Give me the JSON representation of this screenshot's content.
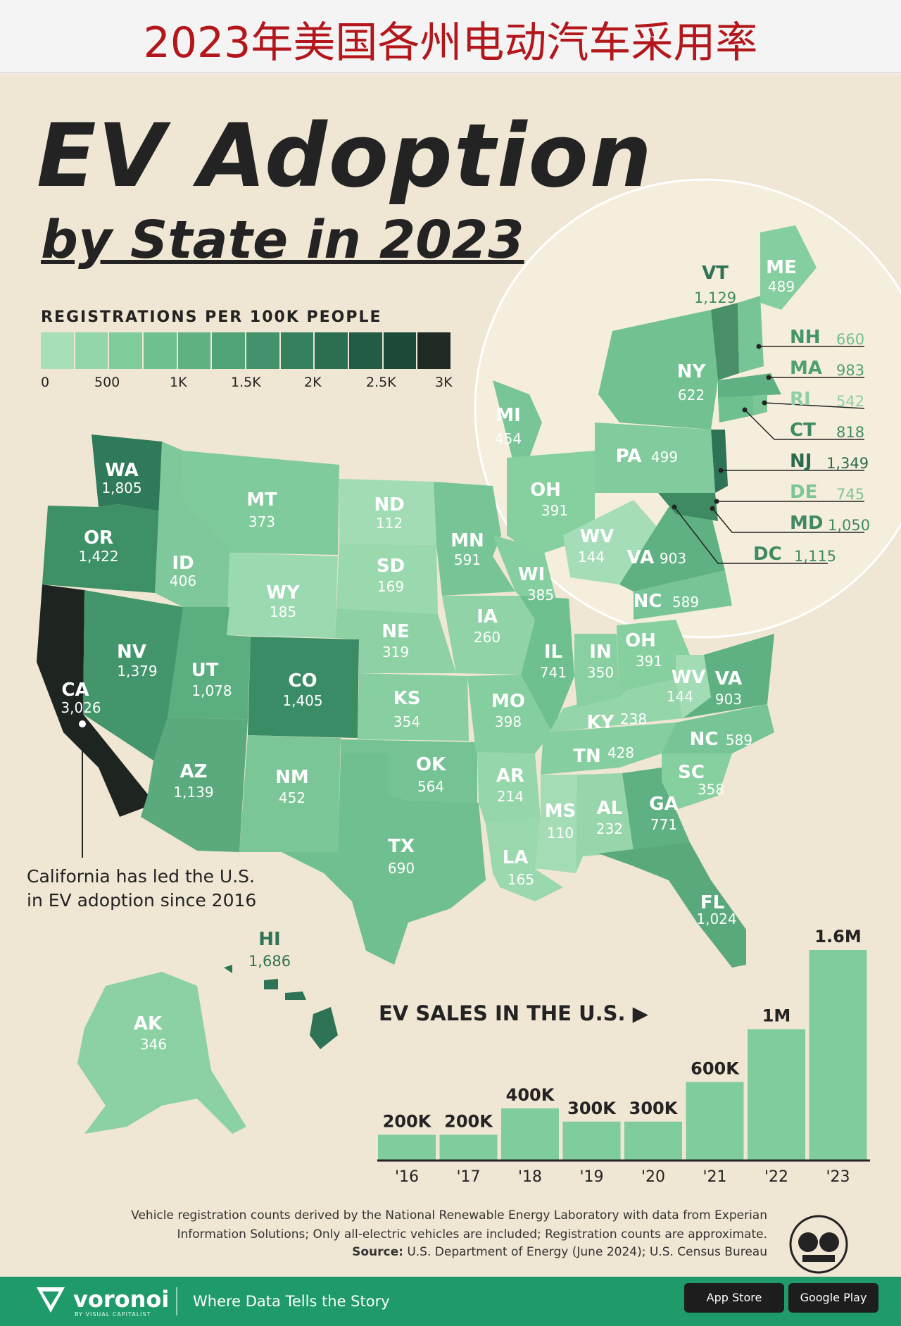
{
  "header": {
    "chinese_title": "2023年美国各州电动汽车采用率"
  },
  "poster": {
    "title_line1": "EV Adoption",
    "title_line2": "by State in 2023"
  },
  "legend": {
    "title": "REGISTRATIONS PER 100K PEOPLE",
    "ticks": [
      "0",
      "500",
      "1K",
      "1.5K",
      "2K",
      "2.5K",
      "3K"
    ],
    "colors": [
      "#a7dfb9",
      "#93d6aa",
      "#80cd9c",
      "#6fc08f",
      "#5fb183",
      "#50a277",
      "#43926b",
      "#37805e",
      "#2c6e50",
      "#235c44",
      "#1b4a37",
      "#202a24"
    ]
  },
  "states": [
    {
      "abbr": "WA",
      "value": "1,805"
    },
    {
      "abbr": "OR",
      "value": "1,422"
    },
    {
      "abbr": "CA",
      "value": "3,026"
    },
    {
      "abbr": "NV",
      "value": "1,379"
    },
    {
      "abbr": "ID",
      "value": "406"
    },
    {
      "abbr": "MT",
      "value": "373"
    },
    {
      "abbr": "WY",
      "value": "185"
    },
    {
      "abbr": "UT",
      "value": "1,078"
    },
    {
      "abbr": "AZ",
      "value": "1,139"
    },
    {
      "abbr": "CO",
      "value": "1,405"
    },
    {
      "abbr": "NM",
      "value": "452"
    },
    {
      "abbr": "ND",
      "value": "112"
    },
    {
      "abbr": "SD",
      "value": "169"
    },
    {
      "abbr": "NE",
      "value": "319"
    },
    {
      "abbr": "KS",
      "value": "354"
    },
    {
      "abbr": "OK",
      "value": "564"
    },
    {
      "abbr": "TX",
      "value": "690"
    },
    {
      "abbr": "MN",
      "value": "591"
    },
    {
      "abbr": "IA",
      "value": "260"
    },
    {
      "abbr": "MO",
      "value": "398"
    },
    {
      "abbr": "AR",
      "value": "214"
    },
    {
      "abbr": "LA",
      "value": "165"
    },
    {
      "abbr": "WI",
      "value": "385"
    },
    {
      "abbr": "IL",
      "value": "741"
    },
    {
      "abbr": "MS",
      "value": "110"
    },
    {
      "abbr": "AL",
      "value": "232"
    },
    {
      "abbr": "TN",
      "value": "428"
    },
    {
      "abbr": "KY",
      "value": "238"
    },
    {
      "abbr": "IN",
      "value": "350"
    },
    {
      "abbr": "OH",
      "value": "391"
    },
    {
      "abbr": "WV",
      "value": "144"
    },
    {
      "abbr": "VA",
      "value": "903"
    },
    {
      "abbr": "NC",
      "value": "589"
    },
    {
      "abbr": "SC",
      "value": "358"
    },
    {
      "abbr": "GA",
      "value": "771"
    },
    {
      "abbr": "FL",
      "value": "1,024"
    },
    {
      "abbr": "AK",
      "value": "346"
    },
    {
      "abbr": "HI",
      "value": "1,686"
    }
  ],
  "inset": {
    "states": [
      {
        "abbr": "VT",
        "value": "1,129"
      },
      {
        "abbr": "ME",
        "value": "489"
      },
      {
        "abbr": "NY",
        "value": "622"
      },
      {
        "abbr": "MI",
        "value": "454"
      },
      {
        "abbr": "PA",
        "value": "499"
      },
      {
        "abbr": "OH",
        "value": "391"
      },
      {
        "abbr": "WV",
        "value": "144"
      },
      {
        "abbr": "VA",
        "value": "903"
      },
      {
        "abbr": "NC",
        "value": "589"
      }
    ],
    "callouts": [
      {
        "abbr": "NH",
        "value": "660"
      },
      {
        "abbr": "MA",
        "value": "983"
      },
      {
        "abbr": "RI",
        "value": "542"
      },
      {
        "abbr": "CT",
        "value": "818"
      },
      {
        "abbr": "NJ",
        "value": "1,349"
      },
      {
        "abbr": "DE",
        "value": "745"
      },
      {
        "abbr": "MD",
        "value": "1,050"
      },
      {
        "abbr": "DC",
        "value": "1,115"
      }
    ]
  },
  "annotation": {
    "ca_note": "California has led the U.S.\nin EV adoption since 2016"
  },
  "sales_chart": {
    "title": "EV SALES IN THE U.S.",
    "chart_data": {
      "type": "bar",
      "title": "EV SALES IN THE U.S.",
      "categories": [
        "'16",
        "'17",
        "'18",
        "'19",
        "'20",
        "'21",
        "'22",
        "'23"
      ],
      "values": [
        200000,
        200000,
        400000,
        300000,
        300000,
        600000,
        1000000,
        1600000
      ],
      "value_labels": [
        "200K",
        "200K",
        "400K",
        "300K",
        "300K",
        "600K",
        "1M",
        "1.6M"
      ],
      "ylim": [
        0,
        1600000
      ]
    }
  },
  "footnote": {
    "line1": "Vehicle registration counts derived by the National Renewable Energy Laboratory with data from Experian",
    "line2": "Information Solutions; Only all-electric vehicles are included; Registration counts are approximate.",
    "source_label": "Source:",
    "source_text": " U.S. Department of Energy (June 2024); U.S. Census Bureau"
  },
  "footer": {
    "brand": "voronoi",
    "brand_sub": "BY VISUAL CAPITALIST",
    "tagline": "Where Data Tells the Story",
    "app_store": "App Store",
    "google_play": "Google Play"
  }
}
